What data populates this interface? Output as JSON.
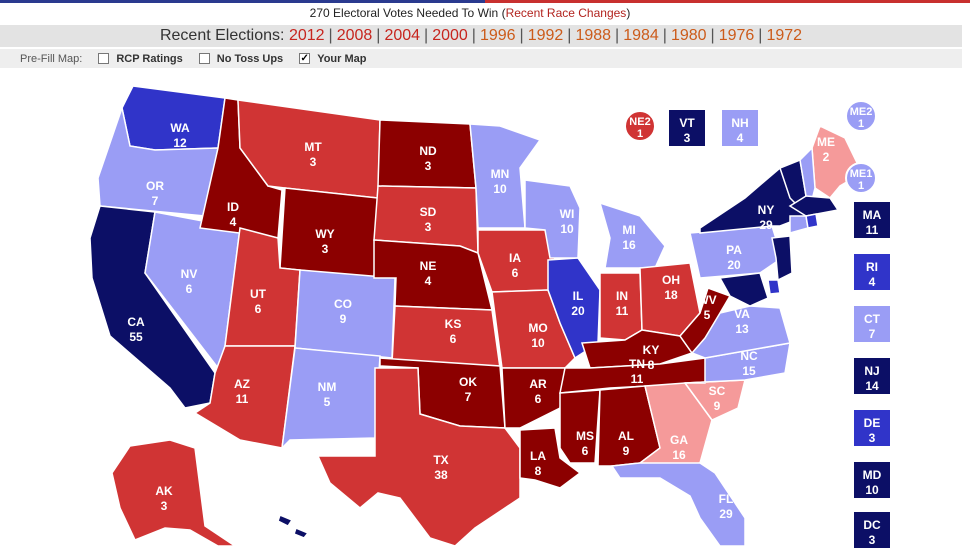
{
  "header": {
    "ev_needed_text": "270 Electoral Votes Needed To Win (",
    "recent_changes_link": "Recent Race Changes",
    "ev_needed_close": ")"
  },
  "elections": {
    "label": "Recent Elections:",
    "years": [
      {
        "year": "2012",
        "color": "#c7251e"
      },
      {
        "year": "2008",
        "color": "#c7251e"
      },
      {
        "year": "2004",
        "color": "#c7251e"
      },
      {
        "year": "2000",
        "color": "#c7251e"
      },
      {
        "year": "1996",
        "color": "#cc5b1a"
      },
      {
        "year": "1992",
        "color": "#cc5b1a"
      },
      {
        "year": "1988",
        "color": "#cc5b1a"
      },
      {
        "year": "1984",
        "color": "#cc5b1a"
      },
      {
        "year": "1980",
        "color": "#cc5b1a"
      },
      {
        "year": "1976",
        "color": "#cc5b1a"
      },
      {
        "year": "1972",
        "color": "#cc5b1a"
      }
    ]
  },
  "prefill": {
    "label": "Pre-Fill Map:",
    "options": [
      {
        "label": "RCP Ratings",
        "checked": false
      },
      {
        "label": "No Toss Ups",
        "checked": false
      },
      {
        "label": "Your Map",
        "checked": true
      }
    ]
  },
  "colors": {
    "safe_dem": "#0c0f66",
    "likely_dem": "#3034c9",
    "lean_dem": "#9a9df5",
    "safe_rep": "#8c0000",
    "likely_rep": "#d03434",
    "lean_rep": "#f59a9a"
  },
  "states": [
    {
      "abbr": "WA",
      "ev": "12",
      "rating": "likely_dem"
    },
    {
      "abbr": "OR",
      "ev": "7",
      "rating": "lean_dem"
    },
    {
      "abbr": "CA",
      "ev": "55",
      "rating": "safe_dem"
    },
    {
      "abbr": "NV",
      "ev": "6",
      "rating": "lean_dem"
    },
    {
      "abbr": "ID",
      "ev": "4",
      "rating": "safe_rep"
    },
    {
      "abbr": "MT",
      "ev": "3",
      "rating": "likely_rep"
    },
    {
      "abbr": "WY",
      "ev": "3",
      "rating": "safe_rep"
    },
    {
      "abbr": "UT",
      "ev": "6",
      "rating": "likely_rep"
    },
    {
      "abbr": "AZ",
      "ev": "11",
      "rating": "likely_rep"
    },
    {
      "abbr": "CO",
      "ev": "9",
      "rating": "lean_dem"
    },
    {
      "abbr": "NM",
      "ev": "5",
      "rating": "lean_dem"
    },
    {
      "abbr": "ND",
      "ev": "3",
      "rating": "safe_rep"
    },
    {
      "abbr": "SD",
      "ev": "3",
      "rating": "likely_rep"
    },
    {
      "abbr": "NE",
      "ev": "4",
      "rating": "safe_rep"
    },
    {
      "abbr": "KS",
      "ev": "6",
      "rating": "likely_rep"
    },
    {
      "abbr": "OK",
      "ev": "7",
      "rating": "safe_rep"
    },
    {
      "abbr": "TX",
      "ev": "38",
      "rating": "likely_rep"
    },
    {
      "abbr": "MN",
      "ev": "10",
      "rating": "lean_dem"
    },
    {
      "abbr": "IA",
      "ev": "6",
      "rating": "likely_rep"
    },
    {
      "abbr": "MO",
      "ev": "10",
      "rating": "likely_rep"
    },
    {
      "abbr": "AR",
      "ev": "6",
      "rating": "safe_rep"
    },
    {
      "abbr": "LA",
      "ev": "8",
      "rating": "safe_rep"
    },
    {
      "abbr": "WI",
      "ev": "10",
      "rating": "lean_dem"
    },
    {
      "abbr": "IL",
      "ev": "20",
      "rating": "likely_dem"
    },
    {
      "abbr": "MI",
      "ev": "16",
      "rating": "lean_dem"
    },
    {
      "abbr": "IN",
      "ev": "11",
      "rating": "likely_rep"
    },
    {
      "abbr": "OH",
      "ev": "18",
      "rating": "likely_rep"
    },
    {
      "abbr": "KY",
      "ev": "8",
      "rating": "safe_rep"
    },
    {
      "abbr": "TN",
      "ev": "11",
      "rating": "safe_rep"
    },
    {
      "abbr": "MS",
      "ev": "6",
      "rating": "safe_rep"
    },
    {
      "abbr": "AL",
      "ev": "9",
      "rating": "safe_rep"
    },
    {
      "abbr": "GA",
      "ev": "16",
      "rating": "lean_rep"
    },
    {
      "abbr": "FL",
      "ev": "29",
      "rating": "lean_dem"
    },
    {
      "abbr": "SC",
      "ev": "9",
      "rating": "lean_rep"
    },
    {
      "abbr": "NC",
      "ev": "15",
      "rating": "lean_dem"
    },
    {
      "abbr": "VA",
      "ev": "13",
      "rating": "lean_dem"
    },
    {
      "abbr": "WV",
      "ev": "5",
      "rating": "safe_rep"
    },
    {
      "abbr": "PA",
      "ev": "20",
      "rating": "lean_dem"
    },
    {
      "abbr": "NY",
      "ev": "29",
      "rating": "safe_dem"
    },
    {
      "abbr": "ME",
      "ev": "2",
      "rating": "lean_rep"
    },
    {
      "abbr": "AK",
      "ev": "3",
      "rating": "likely_rep"
    }
  ],
  "small_states": [
    {
      "abbr": "VT",
      "ev": "3",
      "rating": "safe_dem"
    },
    {
      "abbr": "NH",
      "ev": "4",
      "rating": "lean_dem"
    },
    {
      "abbr": "MA",
      "ev": "11",
      "rating": "safe_dem"
    },
    {
      "abbr": "RI",
      "ev": "4",
      "rating": "likely_dem"
    },
    {
      "abbr": "CT",
      "ev": "7",
      "rating": "lean_dem"
    },
    {
      "abbr": "NJ",
      "ev": "14",
      "rating": "safe_dem"
    },
    {
      "abbr": "DE",
      "ev": "3",
      "rating": "likely_dem"
    },
    {
      "abbr": "MD",
      "ev": "10",
      "rating": "safe_dem"
    },
    {
      "abbr": "DC",
      "ev": "3",
      "rating": "safe_dem"
    }
  ],
  "districts": [
    {
      "abbr": "NE2",
      "ev": "1",
      "rating": "likely_rep"
    },
    {
      "abbr": "ME2",
      "ev": "1",
      "rating": "lean_dem"
    },
    {
      "abbr": "ME1",
      "ev": "1",
      "rating": "lean_dem"
    }
  ]
}
